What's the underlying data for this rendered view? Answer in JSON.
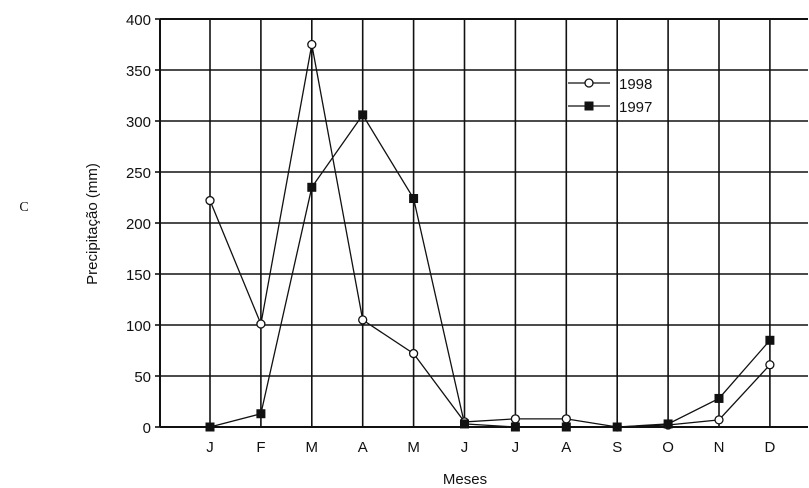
{
  "panel_label": "C",
  "chart_data": {
    "type": "line",
    "title": "",
    "xlabel": "Meses",
    "ylabel": "Precipitação (mm)",
    "categories": [
      "J",
      "F",
      "M",
      "A",
      "M",
      "J",
      "J",
      "A",
      "S",
      "O",
      "N",
      "D"
    ],
    "ylim": [
      0,
      400
    ],
    "yticks": [
      0,
      50,
      100,
      150,
      200,
      250,
      300,
      350,
      400
    ],
    "grid": true,
    "legend_position": "top-right",
    "series": [
      {
        "name": "1998",
        "marker": "open-circle",
        "values": [
          222,
          101,
          375,
          105,
          72,
          5,
          8,
          8,
          0,
          2,
          7,
          61
        ]
      },
      {
        "name": "1997",
        "marker": "filled-square",
        "values": [
          0,
          13,
          235,
          306,
          224,
          3,
          0,
          0,
          0,
          3,
          28,
          85
        ]
      }
    ]
  }
}
